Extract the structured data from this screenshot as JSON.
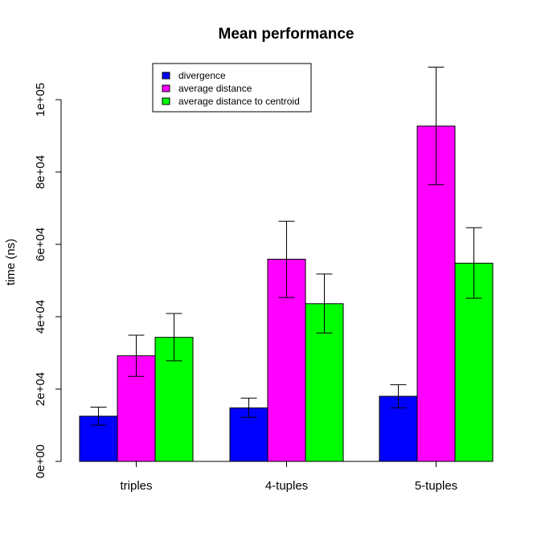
{
  "chart_data": {
    "type": "bar",
    "title": "Mean performance",
    "xlabel": "",
    "ylabel": "time (ns)",
    "ylim": [
      0,
      100000
    ],
    "yticks": [
      0,
      20000,
      40000,
      60000,
      80000,
      100000
    ],
    "ytick_labels": [
      "0e+00",
      "2e+04",
      "4e+04",
      "6e+04",
      "8e+04",
      "1e+05"
    ],
    "categories": [
      "triples",
      "4-tuples",
      "5-tuples"
    ],
    "grid": false,
    "legend_position": "top-left",
    "series": [
      {
        "name": "divergence",
        "color": "#0000ff",
        "values": [
          12500,
          14800,
          18000
        ],
        "error_low": [
          10000,
          12200,
          14800
        ],
        "error_high": [
          15000,
          17500,
          21200
        ]
      },
      {
        "name": "average distance",
        "color": "#ff00ff",
        "values": [
          29200,
          55900,
          92700
        ],
        "error_low": [
          23500,
          45300,
          76500
        ],
        "error_high": [
          34900,
          66400,
          109000
        ]
      },
      {
        "name": "average distance to centroid",
        "color": "#00ff00",
        "values": [
          34300,
          43600,
          54800
        ],
        "error_low": [
          27800,
          35500,
          45100
        ],
        "error_high": [
          40900,
          51800,
          64600
        ]
      }
    ]
  }
}
